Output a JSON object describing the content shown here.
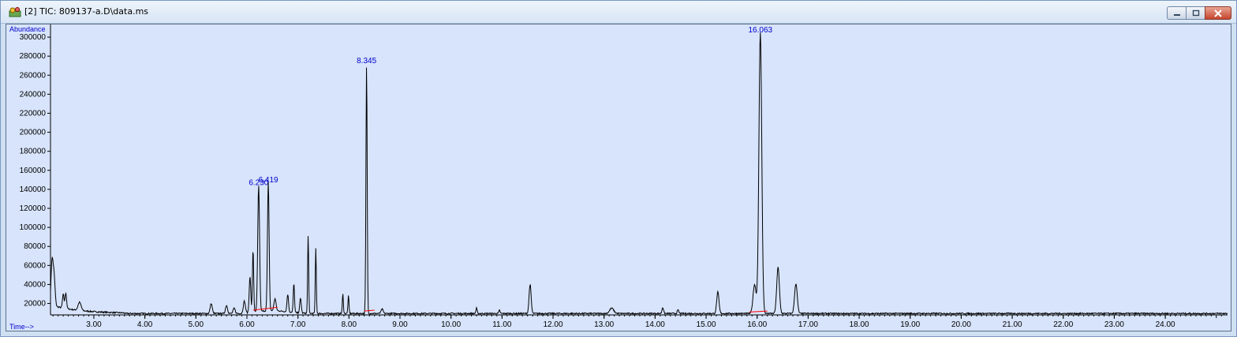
{
  "window": {
    "title": "[2] TIC: 809137-a.D\\data.ms",
    "controls": {
      "minimize": "minimize",
      "maximize": "maximize",
      "close": "close"
    }
  },
  "colors": {
    "trace": "#000000",
    "label": "#0000cc",
    "baseline": "#ff0000",
    "plot_bg": "#d7e4fb"
  },
  "chart_data": {
    "type": "line",
    "title": "",
    "xlabel": "Time-->",
    "ylabel": "Abundance",
    "xlim": [
      2.15,
      25.22
    ],
    "ylim": [
      8000,
      310000
    ],
    "x_ticks": [
      3,
      4,
      5,
      6,
      7,
      8,
      9,
      10,
      11,
      12,
      13,
      14,
      15,
      16,
      17,
      18,
      19,
      20,
      21,
      22,
      23,
      24
    ],
    "x_tick_labels": [
      "3.00",
      "4.00",
      "5.00",
      "6.00",
      "7.00",
      "8.00",
      "9.00",
      "10.00",
      "11.00",
      "12.00",
      "13.00",
      "14.00",
      "15.00",
      "16.00",
      "17.00",
      "18.00",
      "19.00",
      "20.00",
      "21.00",
      "22.00",
      "23.00",
      "24.00"
    ],
    "y_ticks": [
      20000,
      40000,
      60000,
      80000,
      100000,
      120000,
      140000,
      160000,
      180000,
      200000,
      220000,
      240000,
      260000,
      280000,
      300000
    ],
    "y_tick_labels": [
      "20000",
      "40000",
      "60000",
      "80000",
      "100000",
      "120000",
      "140000",
      "160000",
      "180000",
      "200000",
      "220000",
      "240000",
      "260000",
      "280000",
      "300000"
    ],
    "baseline_level": 9500,
    "series": [
      {
        "peaks": [
          {
            "rt": 2.18,
            "height": 55000,
            "width": 0.02
          },
          {
            "rt": 2.22,
            "height": 40000,
            "width": 0.02
          },
          {
            "rt": 2.4,
            "height": 24000,
            "width": 0.015
          },
          {
            "rt": 2.45,
            "height": 26000,
            "width": 0.015
          },
          {
            "rt": 2.72,
            "height": 18000,
            "width": 0.03
          },
          {
            "rt": 5.3,
            "height": 20000,
            "width": 0.02
          },
          {
            "rt": 5.6,
            "height": 18000,
            "width": 0.02
          },
          {
            "rt": 5.75,
            "height": 15000,
            "width": 0.02
          },
          {
            "rt": 5.95,
            "height": 22000,
            "width": 0.02
          },
          {
            "rt": 6.06,
            "height": 48000,
            "width": 0.015
          },
          {
            "rt": 6.12,
            "height": 76000,
            "width": 0.012
          },
          {
            "rt": 6.23,
            "height": 142000,
            "width": 0.018
          },
          {
            "rt": 6.419,
            "height": 145000,
            "width": 0.016
          },
          {
            "rt": 6.55,
            "height": 22000,
            "width": 0.02
          },
          {
            "rt": 6.8,
            "height": 28000,
            "width": 0.015
          },
          {
            "rt": 6.92,
            "height": 40000,
            "width": 0.012
          },
          {
            "rt": 7.05,
            "height": 25000,
            "width": 0.015
          },
          {
            "rt": 7.2,
            "height": 92000,
            "width": 0.01
          },
          {
            "rt": 7.35,
            "height": 78000,
            "width": 0.01
          },
          {
            "rt": 7.88,
            "height": 30000,
            "width": 0.01
          },
          {
            "rt": 7.99,
            "height": 28000,
            "width": 0.01
          },
          {
            "rt": 8.345,
            "height": 270000,
            "width": 0.012
          },
          {
            "rt": 8.65,
            "height": 14000,
            "width": 0.02
          },
          {
            "rt": 10.5,
            "height": 15000,
            "width": 0.012
          },
          {
            "rt": 10.95,
            "height": 13000,
            "width": 0.012
          },
          {
            "rt": 11.55,
            "height": 40000,
            "width": 0.02
          },
          {
            "rt": 13.15,
            "height": 15000,
            "width": 0.04
          },
          {
            "rt": 14.15,
            "height": 16000,
            "width": 0.015
          },
          {
            "rt": 14.45,
            "height": 13000,
            "width": 0.015
          },
          {
            "rt": 15.23,
            "height": 32000,
            "width": 0.022
          },
          {
            "rt": 15.95,
            "height": 40000,
            "width": 0.03
          },
          {
            "rt": 16.063,
            "height": 305000,
            "width": 0.028
          },
          {
            "rt": 16.41,
            "height": 58000,
            "width": 0.026
          },
          {
            "rt": 16.76,
            "height": 41000,
            "width": 0.026
          }
        ]
      }
    ],
    "peak_labels": [
      {
        "rt": 6.23,
        "height": 142000,
        "text": "6.230"
      },
      {
        "rt": 6.419,
        "height": 145000,
        "text": "6.419"
      },
      {
        "rt": 8.345,
        "height": 270000,
        "text": "8.345"
      },
      {
        "rt": 16.063,
        "height": 305000,
        "text": "16.063"
      }
    ],
    "integration_baselines": [
      {
        "from": [
          6.12,
          13000
        ],
        "to": [
          6.6,
          16000
        ]
      },
      {
        "from": [
          8.3,
          12000
        ],
        "to": [
          8.5,
          13000
        ]
      },
      {
        "from": [
          15.85,
          11000
        ],
        "to": [
          16.2,
          12000
        ]
      }
    ]
  }
}
